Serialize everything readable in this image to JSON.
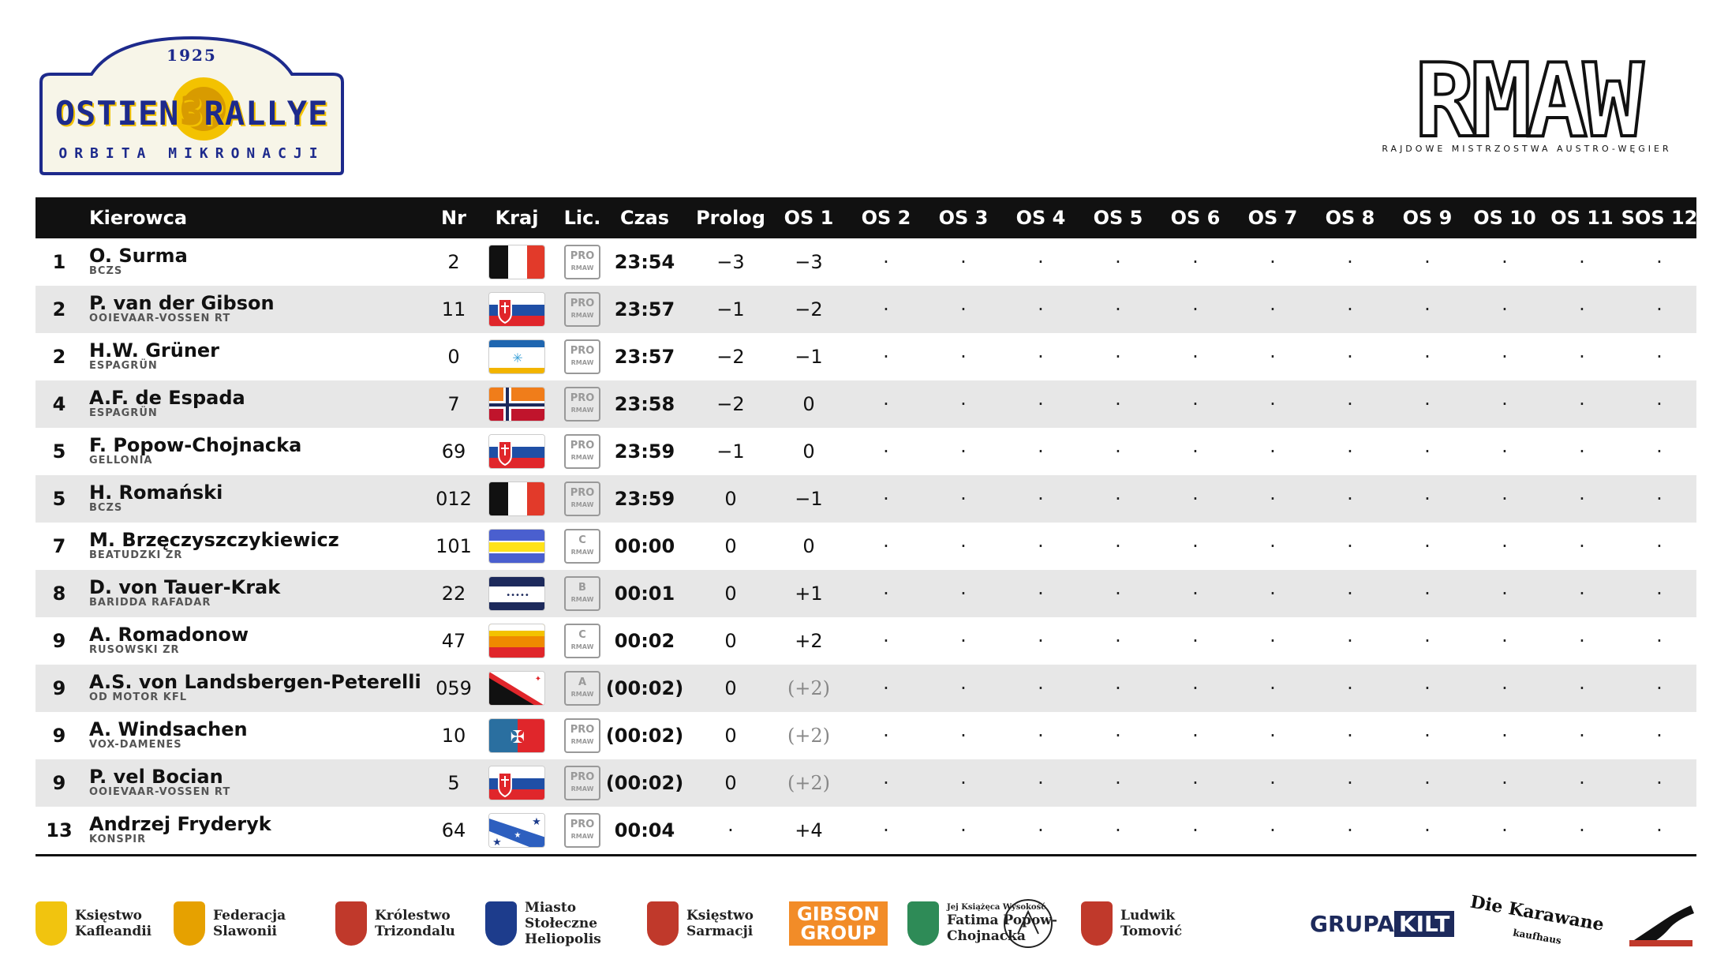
{
  "logos": {
    "rally": {
      "year": "1925",
      "name_left": "OSTIEN",
      "name_mid": "3",
      "name_right": "RALLYE",
      "subtitle": "ORBITA MIKRONACJI"
    },
    "series": {
      "name": "RMAW",
      "subtitle": "RAJDOWE MISTRZOSTWA AUSTRO-WĘGIER"
    }
  },
  "table": {
    "headers": [
      "Kierowca",
      "Nr",
      "Kraj",
      "Lic.",
      "Czas",
      "Prolog",
      "OS 1",
      "OS 2",
      "OS 3",
      "OS 4",
      "OS 5",
      "OS 6",
      "OS 7",
      "OS 8",
      "OS 9",
      "OS 10",
      "OS 11",
      "SOS 12"
    ],
    "rows": [
      {
        "pos": "1",
        "name": "O. Surma",
        "team": "BCZS",
        "nr": "2",
        "flag": "bczs",
        "lic": "PRO",
        "czas": "23:54",
        "prolog": "−3",
        "os1": "−3"
      },
      {
        "pos": "2",
        "name": "P. van der Gibson",
        "team": "OOIEVAAR-VOSSEN RT",
        "nr": "11",
        "flag": "slovak",
        "lic": "PRO",
        "czas": "23:57",
        "prolog": "−1",
        "os1": "−2"
      },
      {
        "pos": "2",
        "name": "H.W. Grüner",
        "team": "ESPAGRÜN",
        "nr": "0",
        "flag": "espa",
        "lic": "PRO",
        "czas": "23:57",
        "prolog": "−2",
        "os1": "−1"
      },
      {
        "pos": "4",
        "name": "A.F. de Espada",
        "team": "ESPAGRÜN",
        "nr": "7",
        "flag": "norse",
        "lic": "PRO",
        "czas": "23:58",
        "prolog": "−2",
        "os1": "0"
      },
      {
        "pos": "5",
        "name": "F. Popow-Chojnacka",
        "team": "GELLONIA",
        "nr": "69",
        "flag": "slovak",
        "lic": "PRO",
        "czas": "23:59",
        "prolog": "−1",
        "os1": "0"
      },
      {
        "pos": "5",
        "name": "H. Romański",
        "team": "BCZS",
        "nr": "012",
        "flag": "bczs",
        "lic": "PRO",
        "czas": "23:59",
        "prolog": "0",
        "os1": "−1"
      },
      {
        "pos": "7",
        "name": "M. Brzęczyszczykiewicz",
        "team": "BEATUDZKI ZR",
        "nr": "101",
        "flag": "beat",
        "lic": "C",
        "czas": "00:00",
        "prolog": "0",
        "os1": "0"
      },
      {
        "pos": "8",
        "name": "D. von Tauer-Krak",
        "team": "BARIDDA RAFADAR",
        "nr": "22",
        "flag": "barid",
        "lic": "B",
        "czas": "00:01",
        "prolog": "0",
        "os1": "+1"
      },
      {
        "pos": "9",
        "name": "A. Romadonow",
        "team": "RUSOWSKI ZR",
        "nr": "47",
        "flag": "rus",
        "lic": "C",
        "czas": "00:02",
        "prolog": "0",
        "os1": "+2"
      },
      {
        "pos": "9",
        "name": "A.S. von Landsbergen-Peterelli",
        "team": "OD MOTOR KFL",
        "nr": "059",
        "flag": "od",
        "lic": "A",
        "czas": "(00:02)",
        "prolog": "0",
        "os1": "(+2)"
      },
      {
        "pos": "9",
        "name": "A. Windsachen",
        "team": "VOX-DAMENES",
        "nr": "10",
        "flag": "vox",
        "lic": "PRO",
        "czas": "(00:02)",
        "prolog": "0",
        "os1": "(+2)"
      },
      {
        "pos": "9",
        "name": "P. vel Bocian",
        "team": "OOIEVAAR-VOSSEN RT",
        "nr": "5",
        "flag": "slovak",
        "lic": "PRO",
        "czas": "(00:02)",
        "prolog": "0",
        "os1": "(+2)"
      },
      {
        "pos": "13",
        "name": "Andrzej Fryderyk",
        "team": "KONSPIR",
        "nr": "64",
        "flag": "konspir",
        "lic": "PRO",
        "czas": "00:04",
        "prolog": "·",
        "os1": "+4"
      }
    ],
    "empty_mark": "·"
  },
  "sponsors": [
    {
      "l1": "Księstwo",
      "l2": "Kafleandii",
      "color": "#f1c40f"
    },
    {
      "l1": "Federacja",
      "l2": "Slawonii",
      "color": "#e6a100"
    },
    {
      "l1": "Królestwo",
      "l2": "Trizondalu",
      "color": "#c0392b"
    },
    {
      "l1": "Miasto",
      "l2": "Stołeczne",
      "l3": "Heliopolis",
      "color": "#1d3c8c"
    },
    {
      "l1": "Księstwo",
      "l2": "Sarmacji",
      "color": "#c0392b"
    },
    {
      "gibson1": "GIBSON",
      "gibson2": "GROUP"
    },
    {
      "small": "Jej Książęca Wysokość",
      "l1": "Fatima Popow-",
      "l2": "Chojnacka",
      "color": "#2e8b57"
    },
    {
      "l1": "Ludwik",
      "l2": "Tomović",
      "color": "#c0392b"
    },
    {
      "kilt1": "GRUPA",
      "kilt2": "KILT"
    },
    {
      "kar1": "Die Karawane",
      "kar2": "kaufhaus"
    }
  ]
}
